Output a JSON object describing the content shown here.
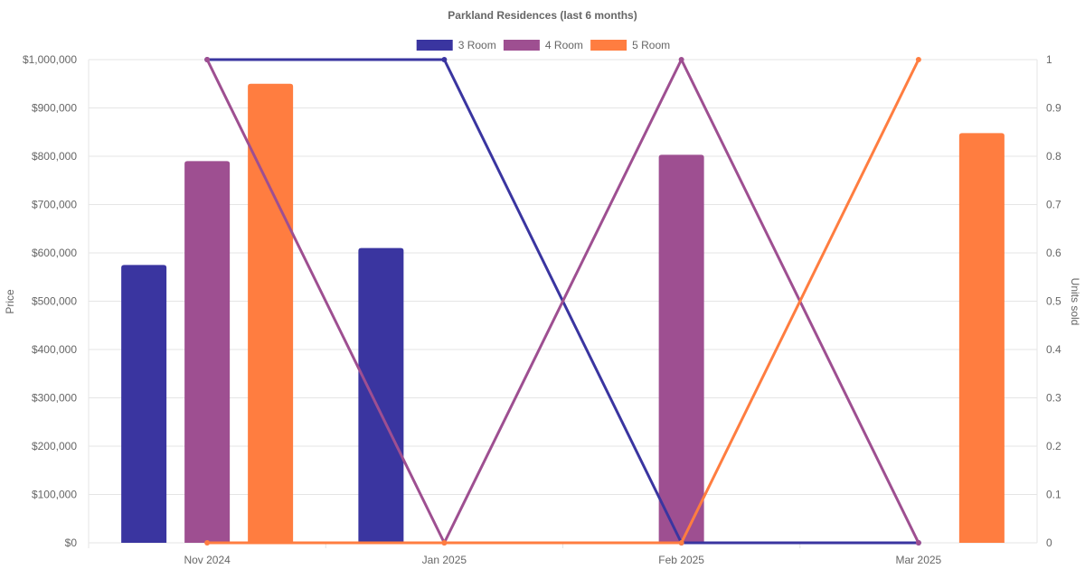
{
  "chart_data": {
    "type": "bar",
    "title": "Parkland Residences (last 6 months)",
    "categories": [
      "Nov 2024",
      "Jan 2025",
      "Feb 2025",
      "Mar 2025"
    ],
    "y_left": {
      "label": "Price",
      "range": [
        0,
        1000000
      ],
      "ticks": [
        "$0",
        "$100,000",
        "$200,000",
        "$300,000",
        "$400,000",
        "$500,000",
        "$600,000",
        "$700,000",
        "$800,000",
        "$900,000",
        "$1,000,000"
      ]
    },
    "y_right": {
      "label": "Units sold",
      "range": [
        0,
        1
      ],
      "ticks": [
        "0",
        "0.1",
        "0.2",
        "0.3",
        "0.4",
        "0.5",
        "0.6",
        "0.7",
        "0.8",
        "0.9",
        "1"
      ]
    },
    "grid": true,
    "legend_position": "top-center",
    "series": [
      {
        "name": "3 Room",
        "color": "#3a35a0",
        "price": [
          575000,
          610000,
          null,
          null
        ],
        "units": [
          1,
          1,
          0,
          0
        ]
      },
      {
        "name": "4 Room",
        "color": "#9e4f91",
        "price": [
          790000,
          null,
          803000,
          null
        ],
        "units": [
          1,
          0,
          1,
          0
        ]
      },
      {
        "name": "5 Room",
        "color": "#ff7d40",
        "price": [
          950000,
          null,
          null,
          848000
        ],
        "units": [
          0,
          0,
          0,
          1
        ]
      }
    ]
  }
}
